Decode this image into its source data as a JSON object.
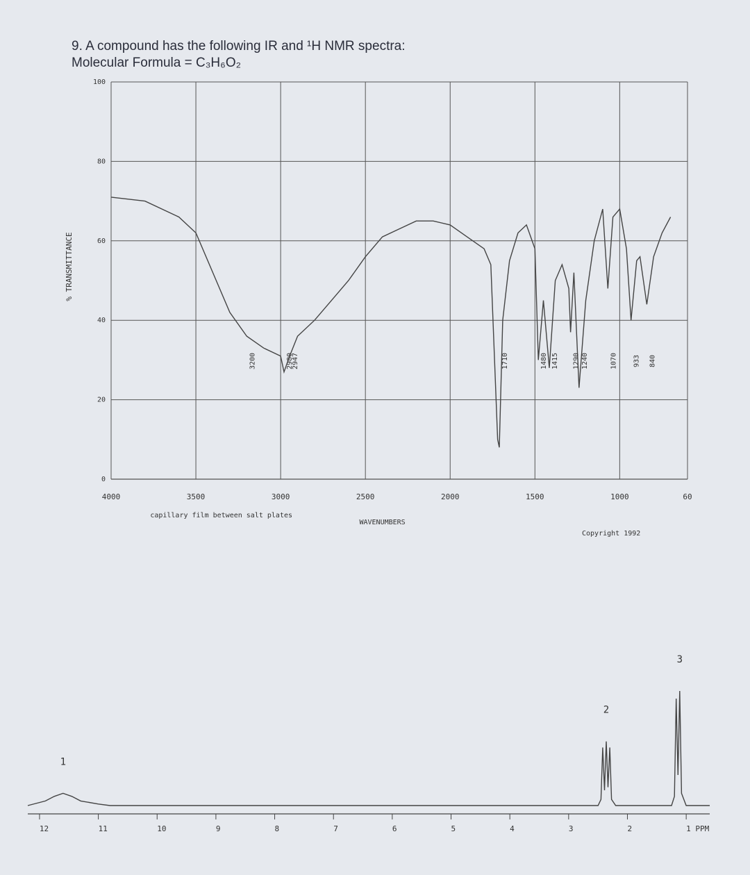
{
  "header": {
    "question": "9. A compound has the following IR and ¹H NMR spectra:",
    "formula": "Molecular Formula = C₃H₆O₂"
  },
  "chart_data": [
    {
      "type": "line",
      "ylabel": "% TRANSMITTANCE",
      "xlabel": "WAVENUMBERS",
      "note": "capillary film between salt plates",
      "copyright": "Copyright 1992",
      "x": [
        4000,
        3800,
        3600,
        3500,
        3400,
        3300,
        3200,
        3100,
        3000,
        2980,
        2947,
        2900,
        2800,
        2700,
        2600,
        2500,
        2400,
        2300,
        2200,
        2100,
        2000,
        1900,
        1800,
        1760,
        1720,
        1710,
        1690,
        1650,
        1600,
        1550,
        1500,
        1480,
        1450,
        1415,
        1380,
        1340,
        1300,
        1290,
        1270,
        1240,
        1200,
        1150,
        1100,
        1070,
        1040,
        1000,
        960,
        933,
        900,
        880,
        840,
        800,
        750,
        700
      ],
      "values": [
        71,
        70,
        66,
        62,
        52,
        42,
        36,
        33,
        31,
        27,
        31,
        36,
        40,
        45,
        50,
        56,
        61,
        63,
        65,
        65,
        64,
        61,
        58,
        54,
        10,
        8,
        40,
        55,
        62,
        64,
        58,
        30,
        45,
        28,
        50,
        54,
        48,
        37,
        52,
        23,
        45,
        60,
        68,
        48,
        66,
        68,
        58,
        40,
        55,
        56,
        44,
        56,
        62,
        66
      ],
      "color": "#444",
      "xlim": [
        4000,
        600
      ],
      "ylim": [
        0,
        100
      ],
      "xticks": [
        4000,
        3500,
        3000,
        2500,
        2000,
        1500,
        1000,
        {
          "value": 600,
          "label": "60"
        }
      ],
      "yticks": [
        0,
        20,
        40,
        60,
        80,
        100
      ],
      "grid": true,
      "peak_labels": [
        3200,
        2980,
        2947,
        1710,
        1480,
        1415,
        1290,
        1240,
        1070,
        933,
        840
      ]
    },
    {
      "type": "line",
      "x": [
        12.2,
        11.9,
        11.75,
        11.6,
        11.45,
        11.3,
        11.0,
        10.8,
        2.5,
        2.45,
        2.42,
        2.39,
        2.36,
        2.33,
        2.3,
        2.27,
        2.2,
        1.25,
        1.2,
        1.17,
        1.14,
        1.11,
        1.08,
        1.0,
        0.6
      ],
      "values": [
        0,
        3,
        6,
        8,
        6,
        3,
        1,
        0,
        0,
        4,
        38,
        10,
        42,
        12,
        38,
        4,
        0,
        0,
        6,
        70,
        20,
        75,
        8,
        0,
        0
      ],
      "color": "#444",
      "xlim": [
        12.2,
        0.6
      ],
      "ylim": [
        0,
        100
      ],
      "xticks": [
        12,
        11,
        10,
        9,
        8,
        7,
        6,
        5,
        4,
        3,
        2,
        {
          "value": 1,
          "label": "1 PPM"
        }
      ],
      "annotations": [
        {
          "text": "1",
          "x": 11.6
        },
        {
          "text": "2",
          "x": 2.36
        },
        {
          "text": "3",
          "x": 1.11
        }
      ]
    }
  ]
}
